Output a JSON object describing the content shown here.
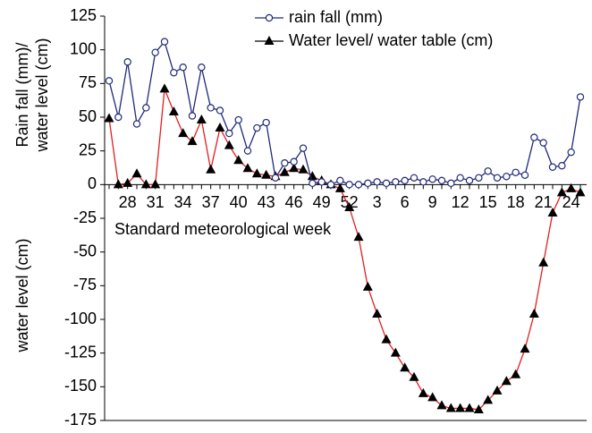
{
  "chart_data": {
    "type": "line",
    "y_label_top": [
      "Rain fall (mm)/",
      "water level (cm)"
    ],
    "y_label_bottom": "water level (cm)",
    "x_label": "Standard meteorological week",
    "categories": [
      null,
      null,
      28,
      null,
      null,
      31,
      null,
      null,
      34,
      null,
      null,
      37,
      null,
      null,
      40,
      null,
      null,
      43,
      null,
      null,
      46,
      null,
      null,
      49,
      null,
      null,
      52,
      null,
      null,
      3,
      null,
      null,
      6,
      null,
      null,
      9,
      null,
      null,
      12,
      null,
      null,
      15,
      null,
      null,
      18,
      null,
      null,
      21,
      null,
      null,
      24,
      null
    ],
    "series": [
      {
        "name": "rain fall (mm)",
        "color": "#1f2a7a",
        "marker": "circle",
        "values": [
          77,
          50,
          91,
          45,
          57,
          98,
          106,
          83,
          87,
          51,
          87,
          57,
          55,
          38,
          48,
          25,
          42,
          46,
          5,
          16,
          17,
          27,
          1,
          2,
          0,
          3,
          0,
          0,
          1,
          2,
          1,
          2,
          3,
          5,
          2,
          4,
          3,
          1,
          5,
          3,
          5,
          10,
          5,
          6,
          9,
          7,
          35,
          31,
          13,
          14,
          24,
          65
        ]
      },
      {
        "name": "Water level/ water table (cm)",
        "color": "#e02020",
        "marker": "triangle",
        "marker_color": "#000000",
        "values": [
          49,
          0,
          1,
          8,
          0,
          0,
          71,
          54,
          38,
          32,
          48,
          11,
          42,
          29,
          18,
          12,
          8,
          7,
          6,
          9,
          12,
          11,
          6,
          3,
          0,
          -3,
          -17,
          -39,
          -76,
          -96,
          -115,
          -125,
          -136,
          -143,
          -155,
          -158,
          -164,
          -166,
          -166,
          -166,
          -167,
          -160,
          -153,
          -146,
          -141,
          -122,
          -96,
          -58,
          -21,
          -6,
          -3,
          -6
        ]
      }
    ],
    "ylim": [
      -175,
      125
    ],
    "yticks": [
      125,
      100,
      75,
      50,
      25,
      0,
      -25,
      -50,
      -75,
      -100,
      -125,
      -150,
      -175
    ],
    "legend": "top-right"
  }
}
